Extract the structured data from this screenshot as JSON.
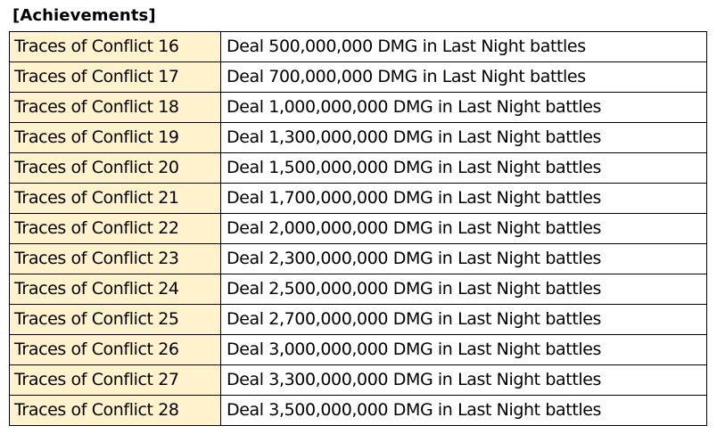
{
  "section": {
    "title": "[Achievements]"
  },
  "achievements": [
    {
      "name": "Traces of Conflict 16",
      "description": "Deal 500,000,000 DMG in Last Night battles"
    },
    {
      "name": "Traces of Conflict 17",
      "description": "Deal 700,000,000 DMG in Last Night battles"
    },
    {
      "name": "Traces of Conflict 18",
      "description": "Deal 1,000,000,000 DMG in Last Night battles"
    },
    {
      "name": "Traces of Conflict 19",
      "description": "Deal 1,300,000,000 DMG in Last Night battles"
    },
    {
      "name": "Traces of Conflict 20",
      "description": "Deal 1,500,000,000 DMG in Last Night battles"
    },
    {
      "name": "Traces of Conflict 21",
      "description": "Deal 1,700,000,000 DMG in Last Night battles"
    },
    {
      "name": "Traces of Conflict 22",
      "description": "Deal 2,000,000,000 DMG in Last Night battles"
    },
    {
      "name": "Traces of Conflict 23",
      "description": "Deal 2,300,000,000 DMG in Last Night battles"
    },
    {
      "name": "Traces of Conflict 24",
      "description": "Deal 2,500,000,000 DMG in Last Night battles"
    },
    {
      "name": "Traces of Conflict 25",
      "description": "Deal 2,700,000,000 DMG in Last Night battles"
    },
    {
      "name": "Traces of Conflict 26",
      "description": "Deal 3,000,000,000 DMG in Last Night battles"
    },
    {
      "name": "Traces of Conflict 27",
      "description": "Deal 3,300,000,000 DMG in Last Night battles"
    },
    {
      "name": "Traces of Conflict 28",
      "description": "Deal 3,500,000,000 DMG in Last Night battles"
    }
  ],
  "colors": {
    "name_cell_background": "#fff2cc",
    "description_cell_background": "#ffffff",
    "border": "#000000"
  }
}
